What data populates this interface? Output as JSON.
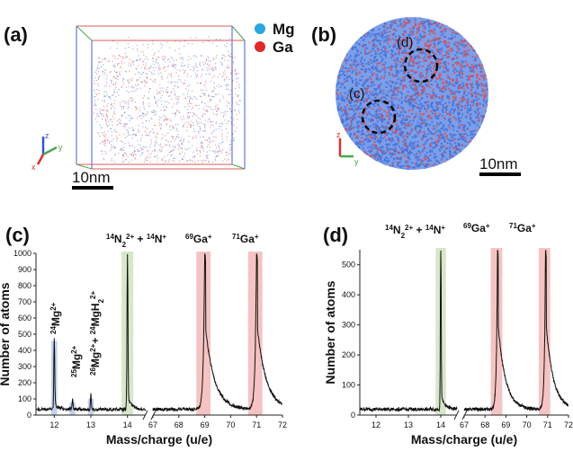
{
  "panels": {
    "a": {
      "label": "(a)",
      "scale_bar": "10nm",
      "legend": [
        {
          "name": "Mg",
          "color": "#2aa7e0"
        },
        {
          "name": "Ga",
          "color": "#e02a2a"
        }
      ],
      "axes": [
        "z",
        "y",
        "x"
      ]
    },
    "b": {
      "label": "(b)",
      "scale_bar": "10nm",
      "circle_labels": [
        "(d)",
        "(c)"
      ],
      "axes": [
        "z",
        "y"
      ]
    },
    "c": {
      "label": "(c)"
    },
    "d": {
      "label": "(d)"
    }
  },
  "colors": {
    "mg_dot": "#3f6fd8",
    "ga_dot": "#e04a4a",
    "green_band": "#cfe3c1",
    "red_band": "#f3b8b8",
    "blue_band": "#b9c9e6"
  },
  "chart_data": [
    {
      "type": "line",
      "panel": "(c)",
      "title": "",
      "xlabel": "Mass/charge (u/e)",
      "ylabel": "Number of atoms",
      "ylim": [
        0,
        1000
      ],
      "yticks": [
        "0",
        "100",
        "200",
        "300",
        "400",
        "500",
        "600",
        "700",
        "800",
        "900",
        "1000"
      ],
      "broken_axis": true,
      "segments": [
        {
          "xlim": [
            11.5,
            14.5
          ],
          "ticks": [
            "12",
            "13",
            "14"
          ]
        },
        {
          "xlim": [
            67,
            72
          ],
          "ticks": [
            "67",
            "68",
            "69",
            "70",
            "71",
            "72"
          ]
        }
      ],
      "peaks": [
        {
          "x": 12.0,
          "height": 450,
          "label": "24Mg2+",
          "band": "blue"
        },
        {
          "x": 12.5,
          "height": 75,
          "label": "25Mg2+",
          "band": "blue"
        },
        {
          "x": 13.0,
          "height": 100,
          "label": "26Mg2+ + 24MgH2 2+",
          "band": "blue"
        },
        {
          "x": 14.0,
          "height": 1000,
          "label": "14N2 2+ + 14N+",
          "band": "green"
        },
        {
          "x": 69.0,
          "height": 1000,
          "label": "69Ga+",
          "band": "red"
        },
        {
          "x": 71.0,
          "height": 1000,
          "label": "71Ga+",
          "band": "red"
        }
      ],
      "annotations": [
        "24Mg2+",
        "25Mg2+",
        "26Mg2+ + 24MgH2 2+",
        "14N2 2+ + 14N+",
        "69Ga+",
        "71Ga+"
      ]
    },
    {
      "type": "line",
      "panel": "(d)",
      "title": "",
      "xlabel": "Mass/charge (u/e)",
      "ylabel": "Number of atoms",
      "ylim": [
        0,
        550
      ],
      "yticks": [
        "0",
        "100",
        "200",
        "300",
        "400",
        "500"
      ],
      "broken_axis": true,
      "segments": [
        {
          "xlim": [
            11.5,
            14.5
          ],
          "ticks": [
            "12",
            "13",
            "14"
          ]
        },
        {
          "xlim": [
            67,
            72
          ],
          "ticks": [
            "67",
            "68",
            "69",
            "70",
            "71",
            "72"
          ]
        }
      ],
      "peaks": [
        {
          "x": 14.0,
          "height": 550,
          "label": "14N2 2+ + 14N+",
          "band": "green"
        },
        {
          "x": 68.6,
          "height": 550,
          "label": "69Ga+",
          "band": "red"
        },
        {
          "x": 70.9,
          "height": 550,
          "label": "71Ga+",
          "band": "red"
        }
      ],
      "annotations": [
        "14N2 2+ + 14N+",
        "69Ga+",
        "71Ga+"
      ]
    }
  ]
}
